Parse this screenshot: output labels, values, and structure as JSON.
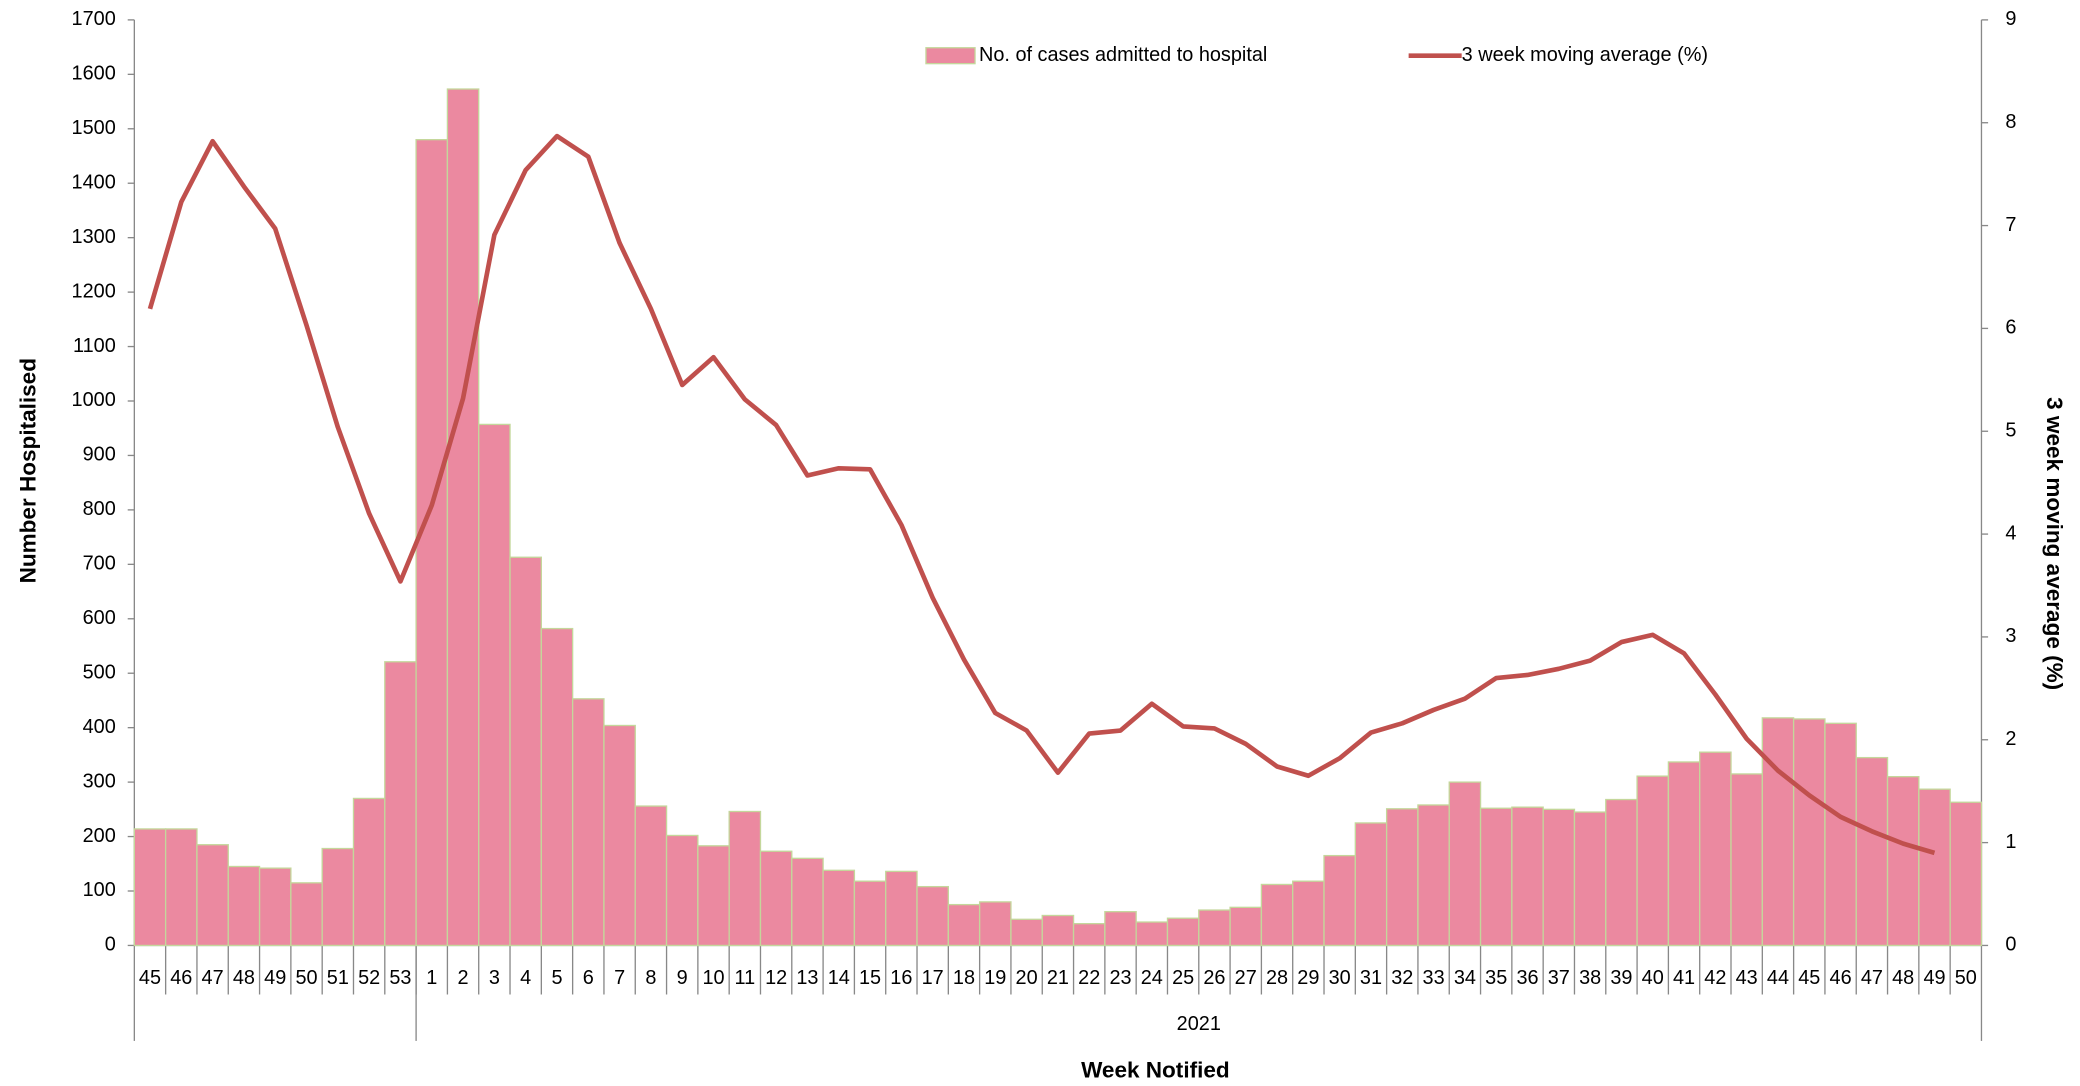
{
  "chart_data": {
    "type": "bar",
    "x_label": "Week Notified",
    "y_label": "Number Hospitalised",
    "y2_label": "3 week moving average (%)",
    "categories": [
      "45",
      "46",
      "47",
      "48",
      "49",
      "50",
      "51",
      "52",
      "53",
      "1",
      "2",
      "3",
      "4",
      "5",
      "6",
      "7",
      "8",
      "9",
      "10",
      "11",
      "12",
      "13",
      "14",
      "15",
      "16",
      "17",
      "18",
      "19",
      "20",
      "21",
      "22",
      "23",
      "24",
      "25",
      "26",
      "27",
      "28",
      "29",
      "30",
      "31",
      "32",
      "33",
      "34",
      "35",
      "36",
      "37",
      "38",
      "39",
      "40",
      "41",
      "42",
      "43",
      "44",
      "45",
      "46",
      "47",
      "48",
      "49",
      "50"
    ],
    "category_groups": [
      null,
      "2021"
    ],
    "series": [
      {
        "name": "No. of cases admitted to hospital",
        "type": "bar",
        "color": "#eb89a0",
        "edgecolor": "#c4d79b",
        "values": [
          214,
          214,
          185,
          145,
          142,
          115,
          178,
          270,
          521,
          1480,
          1573,
          957,
          713,
          582,
          453,
          404,
          256,
          202,
          183,
          246,
          173,
          160,
          138,
          118,
          136,
          108,
          75,
          80,
          48,
          55,
          40,
          62,
          43,
          50,
          65,
          70,
          112,
          118,
          165,
          225,
          251,
          258,
          300,
          252,
          254,
          250,
          245,
          268,
          311,
          337,
          355,
          315,
          418,
          416,
          408,
          345,
          310,
          287,
          263
        ]
      },
      {
        "name": "3 week moving average (%)",
        "type": "line",
        "axis": "y2",
        "color": "#c0504d",
        "values": [
          6.19,
          7.23,
          7.82,
          7.38,
          6.97,
          6.03,
          5.04,
          4.2,
          3.54,
          4.28,
          5.32,
          6.91,
          7.54,
          7.87,
          7.67,
          6.83,
          6.19,
          5.45,
          5.72,
          5.31,
          5.06,
          4.57,
          4.64,
          4.63,
          4.09,
          3.38,
          2.78,
          2.26,
          2.09,
          1.68,
          2.06,
          2.09,
          2.35,
          2.13,
          2.11,
          1.96,
          1.74,
          1.65,
          1.82,
          2.07,
          2.16,
          2.29,
          2.4,
          2.6,
          2.63,
          2.69,
          2.77,
          2.95,
          3.02,
          2.84,
          2.44,
          2.01,
          1.7,
          1.46,
          1.25,
          1.11,
          0.99,
          0.9,
          null
        ]
      }
    ],
    "ylim": [
      0,
      1700
    ],
    "yticks": [
      0,
      100,
      200,
      300,
      400,
      500,
      600,
      700,
      800,
      900,
      1000,
      1100,
      1200,
      1300,
      1400,
      1500,
      1600,
      1700
    ],
    "y2lim": [
      0,
      9
    ],
    "y2ticks": [
      0,
      1,
      2,
      3,
      4,
      5,
      6,
      7,
      8,
      9
    ],
    "legend": "top-center",
    "grid": false
  }
}
